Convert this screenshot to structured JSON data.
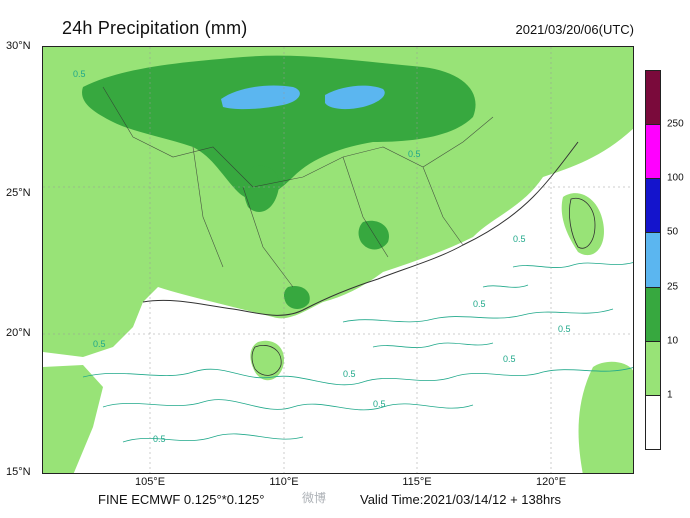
{
  "header": {
    "title": "24h Precipitation (mm)",
    "datetime": "2021/03/20/06(UTC)"
  },
  "axes": {
    "lat_labels": [
      "30°N",
      "25°N",
      "20°N",
      "15°N"
    ],
    "lon_labels": [
      "105°E",
      "110°E",
      "115°E",
      "120°E"
    ]
  },
  "contour_labels": [
    "0.5",
    "0.5",
    "0.5",
    "0.5",
    "0.5",
    "0.5",
    "0.5",
    "0.5",
    "0.5",
    "0.5"
  ],
  "colorbar": {
    "labels": [
      "250",
      "100",
      "50",
      "25",
      "10",
      "1"
    ],
    "colors": [
      "#7a0a3b",
      "#ff00ff",
      "#1414cc",
      "#5bb6f0",
      "#37a83f",
      "#98e377",
      "#ffffff"
    ]
  },
  "footer": {
    "model": "FINE ECMWF 0.125°*0.125°",
    "valid": "Valid Time:2021/03/14/12 + 138hrs"
  },
  "watermark": "微博"
}
